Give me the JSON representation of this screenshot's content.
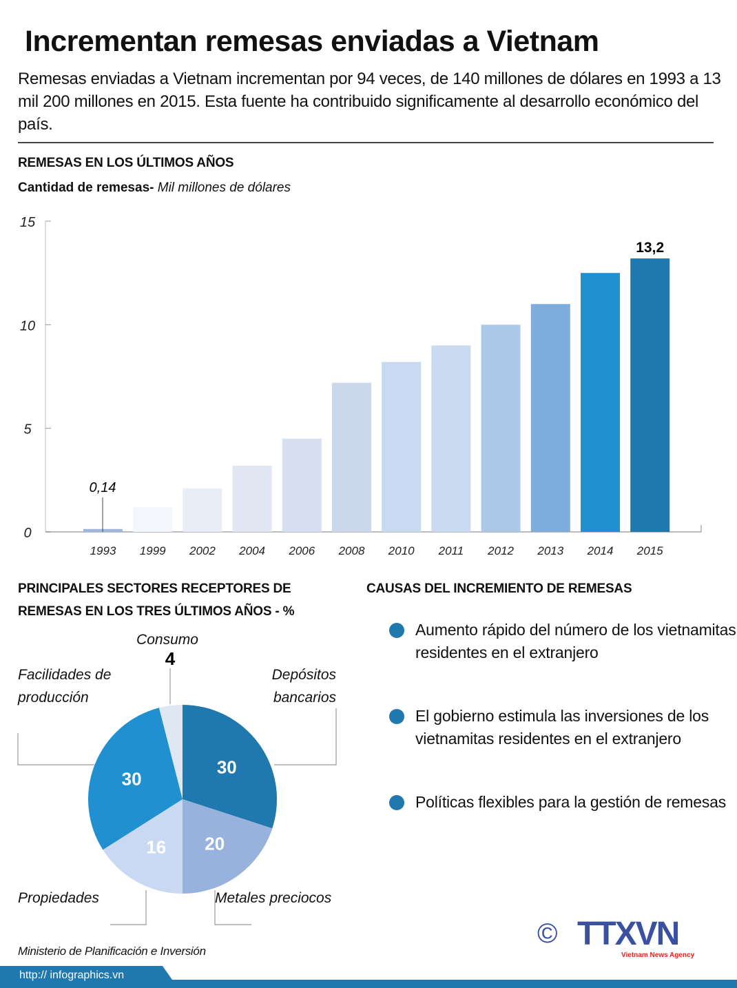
{
  "title": "Incrementan remesas enviadas a Vietnam",
  "intro": "Remesas enviadas a Vietnam incrementan por 94 veces, de 140 millones de dólares en 1993 a 13 mil 200 millones en 2015. Esta fuente ha contribuido significamente al desarrollo económico del país.",
  "chart_data": [
    {
      "type": "bar",
      "title": "REMESAS EN LOS ÚLTIMOS AÑOS",
      "ylabel_bold": "Cantidad de remesas-",
      "ylabel_italic": "Mil millones de dólares",
      "categories": [
        "1993",
        "1999",
        "2002",
        "2004",
        "2006",
        "2008",
        "2010",
        "2011",
        "2012",
        "2013",
        "2014",
        "2015"
      ],
      "values": [
        0.14,
        1.2,
        2.1,
        3.2,
        4.5,
        7.2,
        8.2,
        9.0,
        10.0,
        11.0,
        12.5,
        13.2
      ],
      "colors": [
        "#9fb6de",
        "#f3f6fb",
        "#e8eef7",
        "#e0e7f3",
        "#d6e0f0",
        "#cbd8eb",
        "#c8daf1",
        "#c9daf1",
        "#abc8e8",
        "#7daddc",
        "#2190d0",
        "#1f78ae"
      ],
      "data_labels": {
        "0": "0,14",
        "11": "13,2"
      },
      "yticks": [
        "0",
        "5",
        "10",
        "15"
      ],
      "ylim": [
        0,
        15
      ],
      "grid": false
    },
    {
      "type": "pie",
      "title_line1": "PRINCIPALES SECTORES RECEPTORES DE",
      "title_line2": "REMESAS EN LOS TRES ÚLTIMOS AÑOS - %",
      "slices": [
        {
          "label": "Depósitos bancarios",
          "label_l1": "Depósitos",
          "label_l2": "bancarios",
          "value": 30,
          "color": "#1f78ae"
        },
        {
          "label": "Metales preciocos",
          "value": 20,
          "color": "#97b2dc"
        },
        {
          "label": "Propiedades",
          "value": 16,
          "color": "#c8d9f1"
        },
        {
          "label": "Facilidades de producción",
          "label_l1": "Facilidades de",
          "label_l2": "producción",
          "value": 30,
          "color": "#2190d0"
        },
        {
          "label": "Consumo",
          "value": 4,
          "color": "#dfe7f3"
        }
      ]
    }
  ],
  "causes": {
    "title": "CAUSAS DEL INCREMIENTO DE REMESAS",
    "items": [
      "Aumento rápido del número de los vietnamitas residentes en el extranjero",
      "El gobierno estimula las inversiones de los vietnamitas residentes en el extranjero",
      "Políticas flexibles para la gestión de remesas"
    ]
  },
  "source": "Ministerio de Planificación e Inversión",
  "logo": {
    "copyright": "©",
    "name": "TTXVN",
    "tagline": "Vietnam News Agency"
  },
  "footer_url": "http:// infographics.vn",
  "colors": {
    "accent": "#1f78ae",
    "logo_blue": "#3a50a0",
    "logo_red": "#e2231a"
  }
}
